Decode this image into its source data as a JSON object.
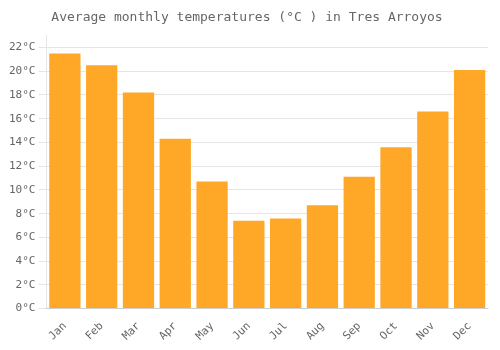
{
  "chart_data": {
    "type": "bar",
    "title": "Average monthly temperatures (°C ) in Tres Arroyos",
    "categories": [
      "Jan",
      "Feb",
      "Mar",
      "Apr",
      "May",
      "Jun",
      "Jul",
      "Aug",
      "Sep",
      "Oct",
      "Nov",
      "Dec"
    ],
    "values": [
      21.5,
      20.5,
      18.2,
      14.3,
      10.7,
      7.4,
      7.6,
      8.7,
      11.1,
      13.6,
      16.6,
      20.1
    ],
    "color": "#FFA726",
    "ylim": [
      0,
      23
    ],
    "yticks": [
      {
        "value": 0,
        "label": "0°C"
      },
      {
        "value": 2,
        "label": "2°C"
      },
      {
        "value": 4,
        "label": "4°C"
      },
      {
        "value": 6,
        "label": "6°C"
      },
      {
        "value": 8,
        "label": "8°C"
      },
      {
        "value": 10,
        "label": "10°C"
      },
      {
        "value": 12,
        "label": "12°C"
      },
      {
        "value": 14,
        "label": "14°C"
      },
      {
        "value": 16,
        "label": "16°C"
      },
      {
        "value": 18,
        "label": "18°C"
      },
      {
        "value": 20,
        "label": "20°C"
      },
      {
        "value": 22,
        "label": "22°C"
      }
    ],
    "grid": true
  }
}
